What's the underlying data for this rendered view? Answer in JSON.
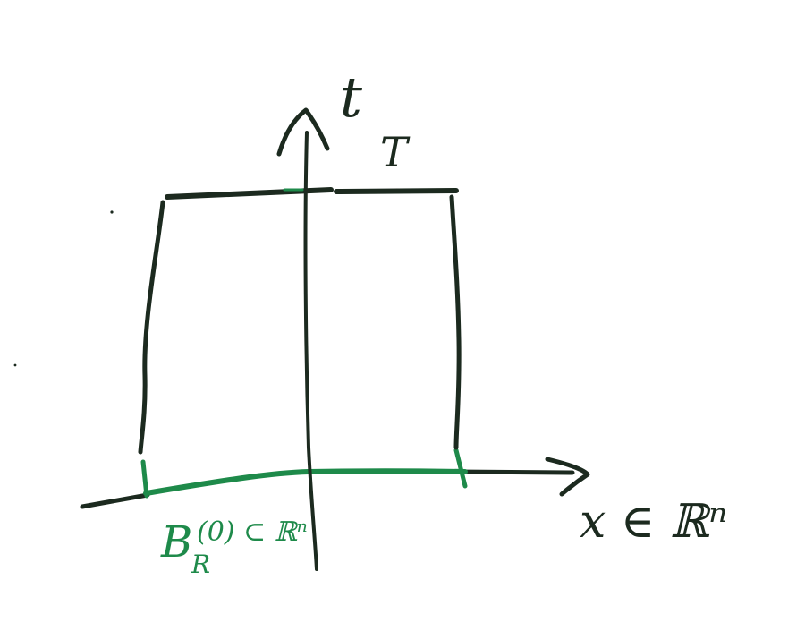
{
  "labels": {
    "t_axis": "t",
    "T_level": "T",
    "x_axis": "x ∈ ℝⁿ",
    "ball_main": "B",
    "ball_sub": "R",
    "ball_rest": "(0) ⊂ ℝⁿ"
  },
  "colors": {
    "dark_ink": "#1c2a1f",
    "green_ink": "#1e8a4a",
    "background": "#ffffff"
  }
}
